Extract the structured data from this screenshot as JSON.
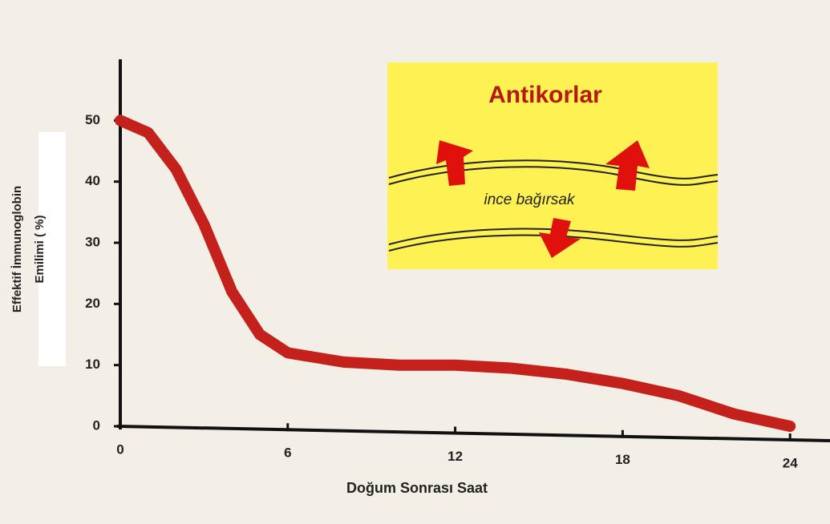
{
  "chart_data": {
    "type": "line",
    "x": [
      0,
      1,
      2,
      3,
      4,
      5,
      6,
      8,
      10,
      12,
      14,
      16,
      18,
      20,
      22,
      24
    ],
    "values": [
      50,
      48,
      42,
      33,
      22,
      15,
      12,
      10.5,
      10,
      10,
      9.5,
      8.5,
      7,
      5,
      2,
      0
    ],
    "color": "#c4201c",
    "xlim": [
      0,
      25
    ],
    "xticks": [
      0,
      6,
      12,
      18,
      24
    ],
    "ylim": [
      0,
      60
    ],
    "yticks": [
      0,
      10,
      20,
      30,
      40,
      50
    ],
    "grid": false,
    "xlabel": "Doğum Sonrası Saat",
    "ylabel": [
      "Effektif  İmmunoglobin",
      "Emilimi ( %)"
    ],
    "inset": {
      "title": "Antikorlar",
      "label": "ince bağırsak"
    }
  }
}
